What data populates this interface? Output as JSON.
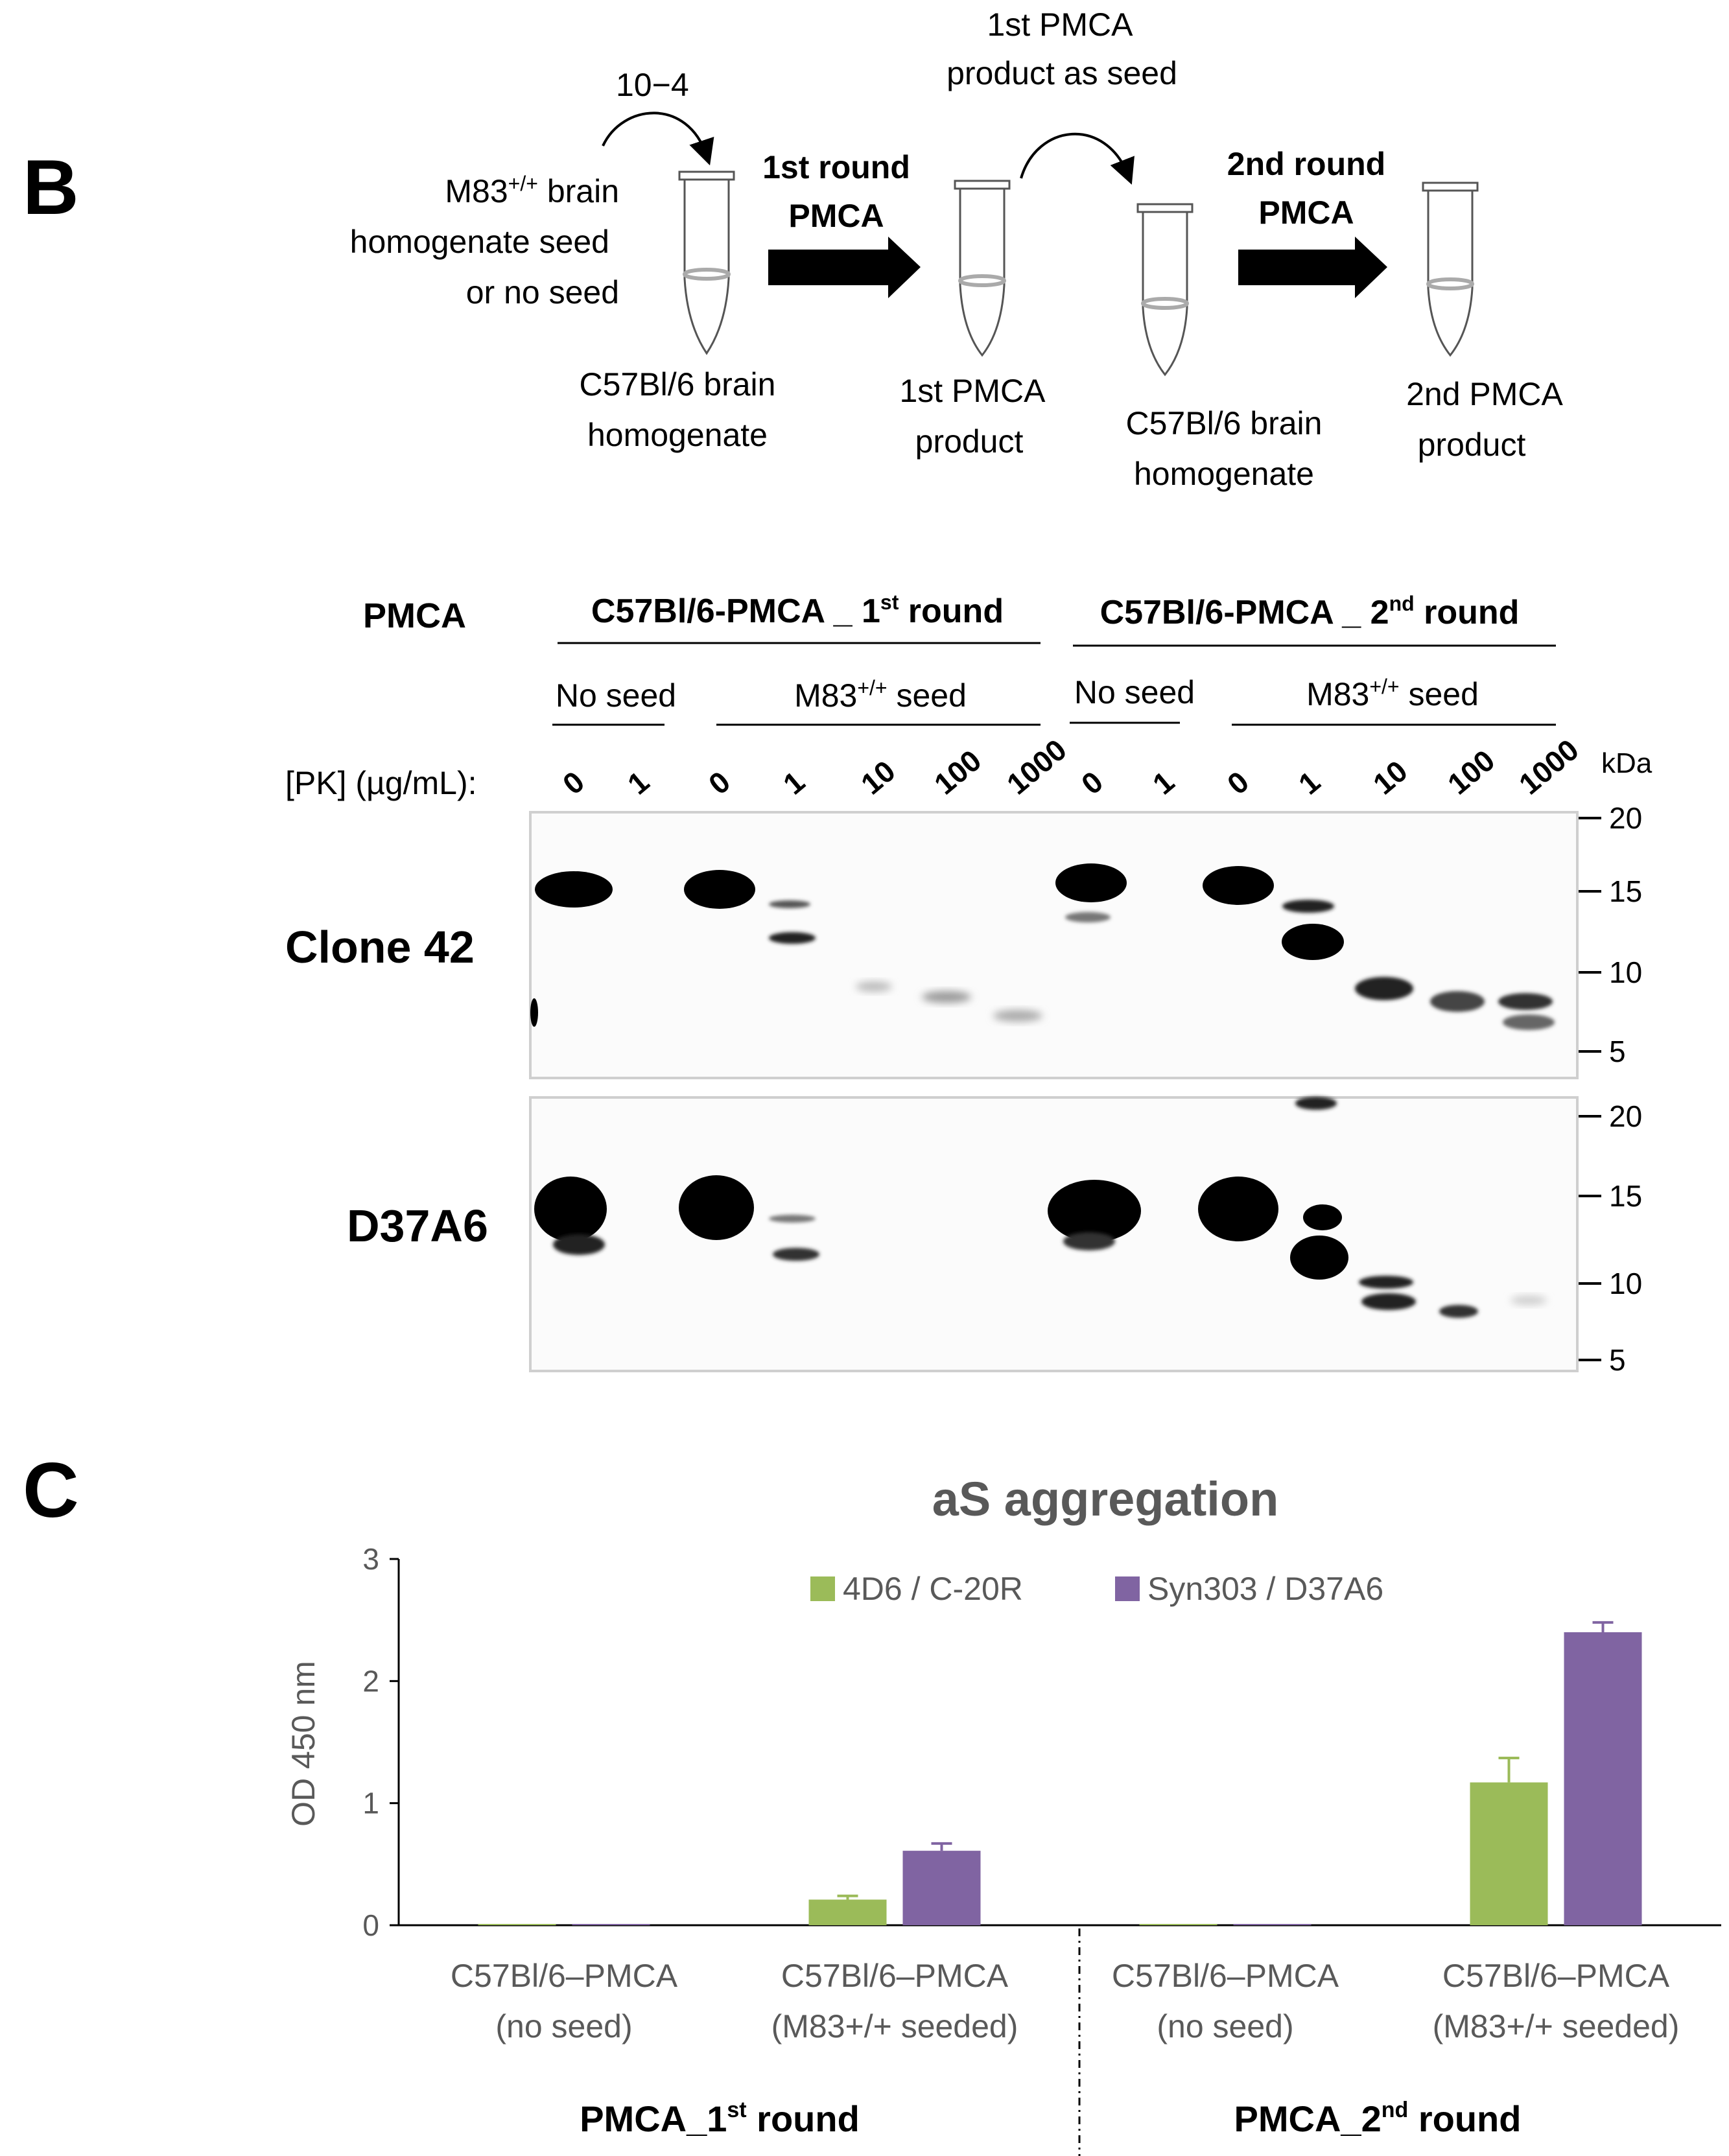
{
  "panel_b": {
    "letter": "B",
    "schematic": {
      "dilution": "10−4",
      "seed_label_line1": "M83",
      "seed_label_line1_sup": "+/+",
      "seed_label_line1_rest": " brain",
      "seed_label_line2": "homogenate seed",
      "seed_label_line3": "or no seed",
      "tube1_label_line1": "C57Bl/6  brain",
      "tube1_label_line2": "homogenate",
      "step1_line1": "1st round",
      "step1_line2": "PMCA",
      "product1_line1": "1st PMCA",
      "product1_line2": "product",
      "reseed_line1": "1st PMCA",
      "reseed_line2": "product as seed",
      "tube3_label_line1": "C57Bl/6  brain",
      "tube3_label_line2": "homogenate",
      "step2_line1": "2nd round",
      "step2_line2": "PMCA",
      "product2_line1": "2nd PMCA",
      "product2_line2": "product"
    },
    "blot": {
      "pmca_label": "PMCA",
      "round1_prefix": "C57Bl/6-PMCA _ 1",
      "round1_sup": "st",
      "round1_suffix": " round",
      "round2_prefix": "C57Bl/6-PMCA _ 2",
      "round2_sup": "nd",
      "round2_suffix": " round",
      "no_seed": "No seed",
      "m83_prefix": "M83",
      "m83_sup": "+/+",
      "m83_suffix": " seed",
      "pk_label": "[PK] (µg/mL):",
      "pk_values_round1": [
        "0",
        "1",
        "0",
        "1",
        "10",
        "100",
        "1000"
      ],
      "pk_values_round2": [
        "0",
        "1",
        "0",
        "1",
        "10",
        "100",
        "1000"
      ],
      "kda_label": "kDa",
      "top_blot_antibody": "Clone 42",
      "bottom_blot_antibody": "D37A6",
      "top_markers": [
        "20",
        "15",
        "10",
        "5"
      ],
      "bottom_markers": [
        "20",
        "15",
        "10",
        "5"
      ]
    }
  },
  "panel_c": {
    "letter": "C",
    "chart_data": {
      "type": "bar",
      "title": "aS aggregation",
      "ylabel": "OD 450 nm",
      "xlabel": "",
      "ylim": [
        0,
        3
      ],
      "yticks": [
        "0",
        "1",
        "2",
        "3"
      ],
      "categories": [
        "C57Bl/6–PMCA (no seed)",
        "C57Bl/6–PMCA (M83+/+ seeded)",
        "C57Bl/6–PMCA (no seed)",
        "C57Bl/6–PMCA (M83+/+ seeded)"
      ],
      "category_lines": [
        [
          "C57Bl/6–PMCA",
          "(no seed)"
        ],
        [
          "C57Bl/6–PMCA",
          "(M83+/+ seeded)"
        ],
        [
          "C57Bl/6–PMCA",
          "(no seed)"
        ],
        [
          "C57Bl/6–PMCA",
          "(M83+/+ seeded)"
        ]
      ],
      "series": [
        {
          "name": "4D6 / C-20R",
          "color": "#9bbb59",
          "values": [
            0.01,
            0.21,
            0.01,
            1.17
          ],
          "errors": [
            0.0,
            0.03,
            0.0,
            0.2
          ]
        },
        {
          "name": "Syn303 / D37A6",
          "color": "#8064a2",
          "values": [
            0.01,
            0.61,
            0.01,
            2.4
          ],
          "errors": [
            0.0,
            0.06,
            0.0,
            0.08
          ]
        }
      ],
      "legend_position": "top-center",
      "group_labels": [
        {
          "prefix": "PMCA_1",
          "sup": "st",
          "suffix": " round"
        },
        {
          "prefix": "PMCA_2",
          "sup": "nd",
          "suffix": " round"
        }
      ]
    }
  }
}
